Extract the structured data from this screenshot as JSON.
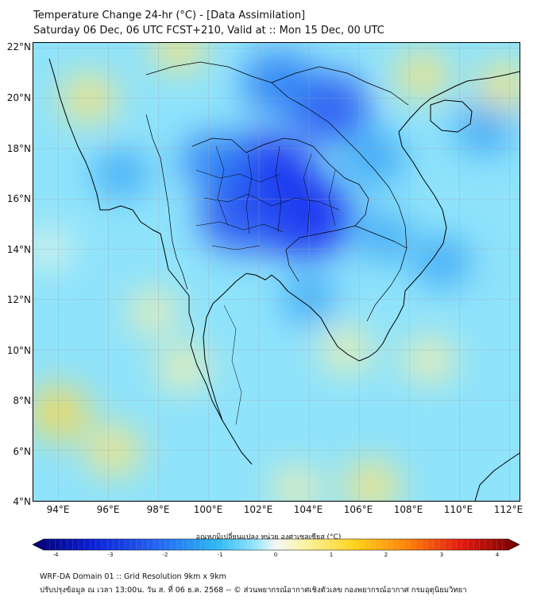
{
  "header": {
    "title": "Temperature Change 24-hr (°C) - [Data Assimilation]",
    "subtitle": "Saturday 06 Dec, 06 UTC FCST+210, Valid at :: Mon 15 Dec, 00 UTC"
  },
  "map": {
    "lat_labels": [
      "22°N",
      "20°N",
      "18°N",
      "16°N",
      "14°N",
      "12°N",
      "10°N",
      "8°N",
      "6°N",
      "4°N"
    ],
    "lon_labels": [
      "94°E",
      "96°E",
      "98°E",
      "100°E",
      "102°E",
      "104°E",
      "106°E",
      "108°E",
      "110°E",
      "112°E"
    ],
    "lat_range": [
      4,
      22.2
    ],
    "lon_range": [
      93,
      112.4
    ],
    "background_color": "#8fe3fb",
    "anomalies": [
      {
        "lon": 102.2,
        "lat": 16.8,
        "value": -2.5
      },
      {
        "lon": 103.8,
        "lat": 15.3,
        "value": -2.3
      },
      {
        "lon": 101.3,
        "lat": 15.3,
        "value": -1.7
      },
      {
        "lon": 104.8,
        "lat": 19.6,
        "value": -1.6
      },
      {
        "lon": 102.8,
        "lat": 20.6,
        "value": -1.3
      },
      {
        "lon": 100.2,
        "lat": 17.5,
        "value": -1.0
      },
      {
        "lon": 106.6,
        "lat": 17.6,
        "value": -0.9
      },
      {
        "lon": 96.5,
        "lat": 17.0,
        "value": -0.6
      },
      {
        "lon": 107.0,
        "lat": 14.5,
        "value": -0.6
      },
      {
        "lon": 109.3,
        "lat": 13.5,
        "value": -0.7
      },
      {
        "lon": 104.0,
        "lat": 12.0,
        "value": -0.6
      },
      {
        "lon": 111.0,
        "lat": 18.8,
        "value": -0.8
      },
      {
        "lon": 95.2,
        "lat": 20.0,
        "value": 0.6
      },
      {
        "lon": 98.8,
        "lat": 22.0,
        "value": 0.5
      },
      {
        "lon": 108.5,
        "lat": 20.9,
        "value": 0.5
      },
      {
        "lon": 111.8,
        "lat": 20.5,
        "value": 0.5
      },
      {
        "lon": 94.0,
        "lat": 7.5,
        "value": 0.8
      },
      {
        "lon": 96.2,
        "lat": 6.0,
        "value": 0.6
      },
      {
        "lon": 99.0,
        "lat": 9.3,
        "value": 0.4
      },
      {
        "lon": 97.8,
        "lat": 11.5,
        "value": 0.3
      },
      {
        "lon": 105.5,
        "lat": 10.0,
        "value": 0.4
      },
      {
        "lon": 108.8,
        "lat": 9.6,
        "value": 0.4
      },
      {
        "lon": 106.5,
        "lat": 4.6,
        "value": 0.6
      },
      {
        "lon": 103.5,
        "lat": 4.5,
        "value": 0.3
      },
      {
        "lon": 93.6,
        "lat": 14.0,
        "value": 0.2
      }
    ]
  },
  "colorbar": {
    "title": "อุณหภูมิเปลี่ยนแปลง หน่วย องศาเซลเซียส (°C)",
    "ticks": [
      "-4",
      "-3",
      "-2",
      "-1",
      "0",
      "1",
      "2",
      "3",
      "4"
    ],
    "range": [
      -4,
      4
    ]
  },
  "footer": {
    "line1": "WRF-DA Domain 01 :: Grid Resolution 9km x 9km",
    "line2": "ปรับปรุงข้อมูล ณ เวลา 13:00น. วัน ส. ที่ 06 ธ.ค. 2568 -- © ส่วนพยากรณ์อากาศเชิงตัวเลข กองพยากรณ์อากาศ กรมอุตุนิยมวิทยา"
  }
}
